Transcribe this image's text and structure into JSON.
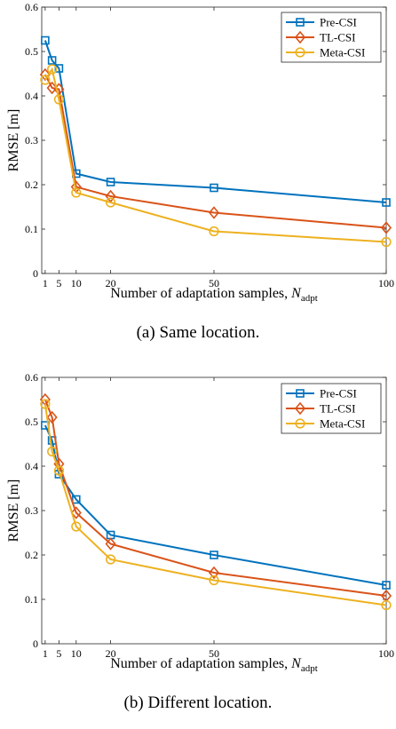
{
  "chart_data": [
    {
      "type": "line",
      "caption": "(a) Same location.",
      "xlabel": "Number of adaptation samples, ",
      "xlabel_var": "N",
      "xlabel_sub": "adpt",
      "ylabel": "RMSE [m]",
      "xlim": [
        0,
        100
      ],
      "ylim": [
        0,
        0.6
      ],
      "xticks": [
        1,
        5,
        10,
        20,
        50,
        100
      ],
      "yticks": [
        0,
        0.1,
        0.2,
        0.3,
        0.4,
        0.5,
        0.6
      ],
      "grid": false,
      "legend_position": "top-right",
      "series": [
        {
          "name": "Pre-CSI",
          "color": "#0072BD",
          "marker": "square",
          "x": [
            1,
            3,
            5,
            10,
            20,
            50,
            100
          ],
          "y": [
            0.525,
            0.48,
            0.462,
            0.225,
            0.206,
            0.193,
            0.16
          ]
        },
        {
          "name": "TL-CSI",
          "color": "#D95319",
          "marker": "diamond",
          "x": [
            1,
            3,
            5,
            10,
            20,
            50,
            100
          ],
          "y": [
            0.448,
            0.418,
            0.415,
            0.195,
            0.174,
            0.137,
            0.103
          ]
        },
        {
          "name": "Meta-CSI",
          "color": "#EDB120",
          "marker": "circle",
          "x": [
            1,
            3,
            5,
            10,
            20,
            50,
            100
          ],
          "y": [
            0.436,
            0.46,
            0.392,
            0.182,
            0.16,
            0.095,
            0.071
          ]
        }
      ]
    },
    {
      "type": "line",
      "caption": "(b) Different location.",
      "xlabel": "Number of adaptation samples, ",
      "xlabel_var": "N",
      "xlabel_sub": "adpt",
      "ylabel": "RMSE [m]",
      "xlim": [
        0,
        100
      ],
      "ylim": [
        0,
        0.6
      ],
      "xticks": [
        1,
        5,
        10,
        20,
        50,
        100
      ],
      "yticks": [
        0,
        0.1,
        0.2,
        0.3,
        0.4,
        0.5,
        0.6
      ],
      "grid": false,
      "legend_position": "top-right",
      "series": [
        {
          "name": "Pre-CSI",
          "color": "#0072BD",
          "marker": "square",
          "x": [
            1,
            3,
            5,
            10,
            20,
            50,
            100
          ],
          "y": [
            0.492,
            0.458,
            0.382,
            0.325,
            0.245,
            0.2,
            0.132
          ]
        },
        {
          "name": "TL-CSI",
          "color": "#D95319",
          "marker": "diamond",
          "x": [
            1,
            3,
            5,
            10,
            20,
            50,
            100
          ],
          "y": [
            0.55,
            0.51,
            0.405,
            0.295,
            0.225,
            0.16,
            0.108
          ]
        },
        {
          "name": "Meta-CSI",
          "color": "#EDB120",
          "marker": "circle",
          "x": [
            1,
            3,
            5,
            10,
            20,
            50,
            100
          ],
          "y": [
            0.54,
            0.433,
            0.39,
            0.264,
            0.19,
            0.143,
            0.087
          ]
        }
      ]
    }
  ]
}
